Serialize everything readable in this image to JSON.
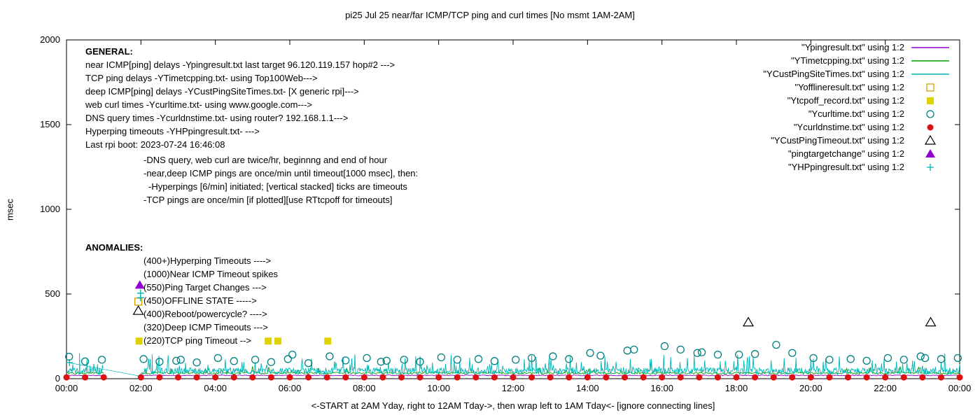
{
  "title": "pi25 Jul 25  near/far ICMP/TCP ping and curl times [No msmt 1AM-2AM]",
  "axes": {
    "ylabel": "msec",
    "xlabel": "<-START at 2AM Yday, right to 12AM Tday->, then wrap left to 1AM Tday<- [ignore connecting lines]",
    "y_ticks": [
      "0",
      "500",
      "1000",
      "1500",
      "2000"
    ],
    "x_ticks": [
      "00:00",
      "02:00",
      "04:00",
      "06:00",
      "08:00",
      "10:00",
      "12:00",
      "14:00",
      "16:00",
      "18:00",
      "20:00",
      "22:00",
      "00:00"
    ]
  },
  "legend": {
    "items": [
      {
        "label": "\"Ypingresult.txt\" using 1:2",
        "marker": "line",
        "color": "#9400d3"
      },
      {
        "label": "\"YTimetcpping.txt\" using 1:2",
        "marker": "line",
        "color": "#00a000"
      },
      {
        "label": "\"YCustPingSiteTimes.txt\" using 1:2",
        "marker": "line",
        "color": "#00b6b6"
      },
      {
        "label": "\"Yofflineresult.txt\" using 1:2",
        "marker": "square-open",
        "color": "#d0a000"
      },
      {
        "label": "\"Ytcpoff_record.txt\" using 1:2",
        "marker": "square-filled",
        "color": "#dfd200"
      },
      {
        "label": "\"Ycurltime.txt\" using 1:2",
        "marker": "circle-open",
        "color": "#008080"
      },
      {
        "label": "\"Ycurldnstime.txt\" using 1:2",
        "marker": "circle-filled",
        "color": "#dd1111"
      },
      {
        "label": "\"YCustPingTimeout.txt\" using 1:2",
        "marker": "triangle-open",
        "color": "#000000"
      },
      {
        "label": "\"pingtargetchange\" using 1:2",
        "marker": "triangle-filled",
        "color": "#9400d3"
      },
      {
        "label": "\"YHPpingresult.txt\" using 1:2",
        "marker": "plus",
        "color": "#00b0b0"
      }
    ]
  },
  "annotations": {
    "general": {
      "heading": "GENERAL:",
      "lines": [
        "near ICMP[ping] delays -Ypingresult.txt last target 96.120.119.157 hop#2 --->",
        "TCP ping delays -YTimetcpping.txt- using Top100Web--->",
        "deep ICMP[ping] delays -YCustPingSiteTimes.txt- [X generic rpi]--->",
        "web curl times -Ycurltime.txt- using www.google.com--->",
        "DNS query times -Ycurldnstime.txt- using router? 192.168.1.1--->",
        "Hyperping timeouts -YHPpingresult.txt- --->",
        "Last rpi boot: 2023-07-24 16:46:08"
      ],
      "notes": [
        "-DNS query, web curl are twice/hr, beginnng and end of hour",
        "-near,deep ICMP pings are once/min until timeout[1000 msec], then:",
        "-Hyperpings [6/min] initiated; [vertical stacked] ticks are timeouts",
        "-TCP pings are once/min [if plotted][use RTtcpoff for timeouts]"
      ]
    },
    "anomalies": {
      "heading": "ANOMALIES:",
      "lines": [
        "(400+)Hyperping Timeouts ---->",
        "(1000)Near ICMP Timeout spikes",
        "(550)Ping Target Changes --->",
        "(450)OFFLINE STATE ----->",
        "(400)Reboot/powercycle? ---->",
        "(320)Deep ICMP Timeouts --->",
        "(220)TCP ping Timeout  -->"
      ]
    }
  },
  "chart_data": {
    "type": "line",
    "title": "pi25 Jul 25  near/far ICMP/TCP ping and curl times [No msmt 1AM-2AM]",
    "xlabel": "<-START at 2AM Yday, right to 12AM Tday->, then wrap left to 1AM Tday<- [ignore connecting lines]",
    "ylabel": "msec",
    "xlim_hours": [
      0,
      24
    ],
    "ylim": [
      0,
      2000
    ],
    "gap_hours": [
      1,
      2
    ],
    "grid": false,
    "legend_position": "top-right-inside",
    "connector_lines": [
      [
        [
          0.05,
          95
        ],
        [
          2.05,
          12
        ]
      ]
    ],
    "series": [
      {
        "name": "Ypingresult.txt",
        "type": "line",
        "marker": "line",
        "color": "#9400d3",
        "synth": {
          "baseline": 17,
          "noise": 5,
          "step_min": 2,
          "seed": 11
        }
      },
      {
        "name": "YTimetcpping.txt",
        "type": "line",
        "marker": "line",
        "color": "#00a000",
        "synth": {
          "baseline": 27,
          "noise": 12,
          "step_min": 2,
          "seed": 22,
          "spike_chance": 0.05,
          "spike_amp": 35
        }
      },
      {
        "name": "YCustPingSiteTimes.txt",
        "type": "line",
        "marker": "line",
        "color": "#00b6b6",
        "synth": {
          "baseline": 25,
          "noise": 40,
          "step_min": 1,
          "seed": 33,
          "spike_chance": 0.12,
          "spike_amp": 90
        },
        "spikes": [
          [
            0.35,
            150
          ],
          [
            2.3,
            145
          ],
          [
            4.15,
            135
          ],
          [
            5.05,
            140
          ],
          [
            6.05,
            160
          ],
          [
            7.0,
            150
          ],
          [
            8.5,
            135
          ],
          [
            10.1,
            130
          ],
          [
            11.9,
            140
          ],
          [
            12.8,
            150
          ],
          [
            13.9,
            160
          ],
          [
            15.0,
            170
          ],
          [
            16.0,
            200
          ],
          [
            16.9,
            180
          ],
          [
            17.8,
            160
          ],
          [
            18.55,
            260
          ],
          [
            18.75,
            230
          ],
          [
            18.95,
            280
          ],
          [
            19.05,
            420
          ],
          [
            19.15,
            350
          ],
          [
            19.3,
            300
          ],
          [
            19.5,
            250
          ],
          [
            19.8,
            200
          ],
          [
            21.0,
            160
          ],
          [
            22.5,
            170
          ],
          [
            22.8,
            200
          ],
          [
            23.05,
            220
          ],
          [
            23.3,
            180
          ],
          [
            23.85,
            160
          ]
        ]
      },
      {
        "name": "Yofflineresult.txt",
        "type": "points",
        "marker": "square-open",
        "color": "#d0a000",
        "points": [
          [
            1.93,
            455
          ]
        ]
      },
      {
        "name": "Ytcpoff_record.txt",
        "type": "points",
        "marker": "square-filled",
        "color": "#dfd200",
        "points": [
          [
            1.95,
            222
          ],
          [
            5.42,
            222
          ],
          [
            5.68,
            222
          ],
          [
            7.02,
            222
          ]
        ]
      },
      {
        "name": "Ycurltime.txt",
        "type": "points",
        "marker": "circle-open",
        "color": "#008080",
        "points": [
          [
            0.07,
            130
          ],
          [
            0.5,
            102
          ],
          [
            0.95,
            112
          ],
          [
            2.07,
            116
          ],
          [
            2.5,
            100
          ],
          [
            2.95,
            106
          ],
          [
            3.07,
            112
          ],
          [
            3.5,
            96
          ],
          [
            4.07,
            122
          ],
          [
            4.5,
            104
          ],
          [
            5.07,
            112
          ],
          [
            5.5,
            98
          ],
          [
            5.95,
            116
          ],
          [
            6.07,
            142
          ],
          [
            6.5,
            92
          ],
          [
            7.07,
            132
          ],
          [
            7.5,
            108
          ],
          [
            8.07,
            122
          ],
          [
            8.45,
            100
          ],
          [
            8.6,
            106
          ],
          [
            9.07,
            112
          ],
          [
            9.5,
            100
          ],
          [
            10.07,
            126
          ],
          [
            10.5,
            112
          ],
          [
            11.07,
            116
          ],
          [
            11.5,
            104
          ],
          [
            12.07,
            112
          ],
          [
            12.5,
            122
          ],
          [
            13.07,
            132
          ],
          [
            13.5,
            116
          ],
          [
            14.07,
            152
          ],
          [
            14.35,
            136
          ],
          [
            15.07,
            166
          ],
          [
            15.25,
            172
          ],
          [
            16.07,
            192
          ],
          [
            16.5,
            172
          ],
          [
            16.95,
            152
          ],
          [
            17.07,
            156
          ],
          [
            17.5,
            142
          ],
          [
            18.07,
            142
          ],
          [
            18.5,
            146
          ],
          [
            19.07,
            200
          ],
          [
            19.5,
            152
          ],
          [
            20.07,
            122
          ],
          [
            20.5,
            112
          ],
          [
            21.07,
            116
          ],
          [
            21.5,
            106
          ],
          [
            22.07,
            122
          ],
          [
            22.5,
            112
          ],
          [
            22.95,
            132
          ],
          [
            23.07,
            122
          ],
          [
            23.5,
            116
          ],
          [
            23.95,
            122
          ]
        ]
      },
      {
        "name": "Ycurldnstime.txt",
        "type": "points",
        "marker": "circle-filled",
        "color": "#dd1111",
        "value": 8,
        "times": [
          0,
          0.5,
          1,
          2,
          2.5,
          3,
          3.5,
          4,
          4.5,
          5,
          5.5,
          6,
          6.5,
          7,
          7.5,
          8,
          8.5,
          9,
          9.5,
          10,
          10.5,
          11,
          11.5,
          12,
          12.5,
          13,
          13.5,
          14,
          14.5,
          15,
          15.5,
          16,
          16.5,
          17,
          17.5,
          18,
          18.5,
          19,
          19.5,
          20,
          20.5,
          21,
          21.5,
          22,
          22.5,
          23,
          23.5,
          24
        ]
      },
      {
        "name": "YCustPingTimeout.txt",
        "type": "points",
        "marker": "triangle-open",
        "color": "#000000",
        "points": [
          [
            1.93,
            400
          ],
          [
            18.32,
            332
          ],
          [
            23.22,
            332
          ]
        ]
      },
      {
        "name": "pingtargetchange",
        "type": "points",
        "marker": "triangle-filled",
        "color": "#9400d3",
        "points": [
          [
            1.97,
            552
          ]
        ]
      },
      {
        "name": "YHPpingresult.txt",
        "type": "points",
        "marker": "plus",
        "color": "#00b0b0",
        "points": [
          [
            0.08,
            95
          ],
          [
            1.99,
            505
          ],
          [
            1.99,
            478
          ]
        ]
      }
    ]
  }
}
